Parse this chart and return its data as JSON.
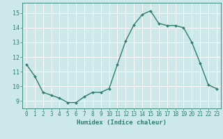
{
  "x": [
    0,
    1,
    2,
    3,
    4,
    5,
    6,
    7,
    8,
    9,
    10,
    11,
    12,
    13,
    14,
    15,
    16,
    17,
    18,
    19,
    20,
    21,
    22,
    23
  ],
  "y": [
    11.5,
    10.7,
    9.6,
    9.4,
    9.2,
    8.9,
    8.9,
    9.3,
    9.6,
    9.6,
    9.85,
    11.5,
    13.1,
    14.2,
    14.9,
    15.15,
    14.3,
    14.15,
    14.15,
    14.0,
    13.0,
    11.6,
    10.1,
    9.85
  ],
  "xlabel": "Humidex (Indice chaleur)",
  "xlim": [
    -0.5,
    23.5
  ],
  "ylim": [
    8.5,
    15.7
  ],
  "yticks": [
    9,
    10,
    11,
    12,
    13,
    14,
    15
  ],
  "xticks": [
    0,
    1,
    2,
    3,
    4,
    5,
    6,
    7,
    8,
    9,
    10,
    11,
    12,
    13,
    14,
    15,
    16,
    17,
    18,
    19,
    20,
    21,
    22,
    23
  ],
  "line_color": "#2e7d6e",
  "marker": "D",
  "marker_size": 2.0,
  "bg_color": "#cce8e8",
  "grid_color": "#ffffff",
  "axes_color": "#2e7d6e",
  "tick_color": "#2e7d6e",
  "xlabel_fontsize": 6.5,
  "tick_fontsize": 5.5,
  "line_width": 1.0
}
